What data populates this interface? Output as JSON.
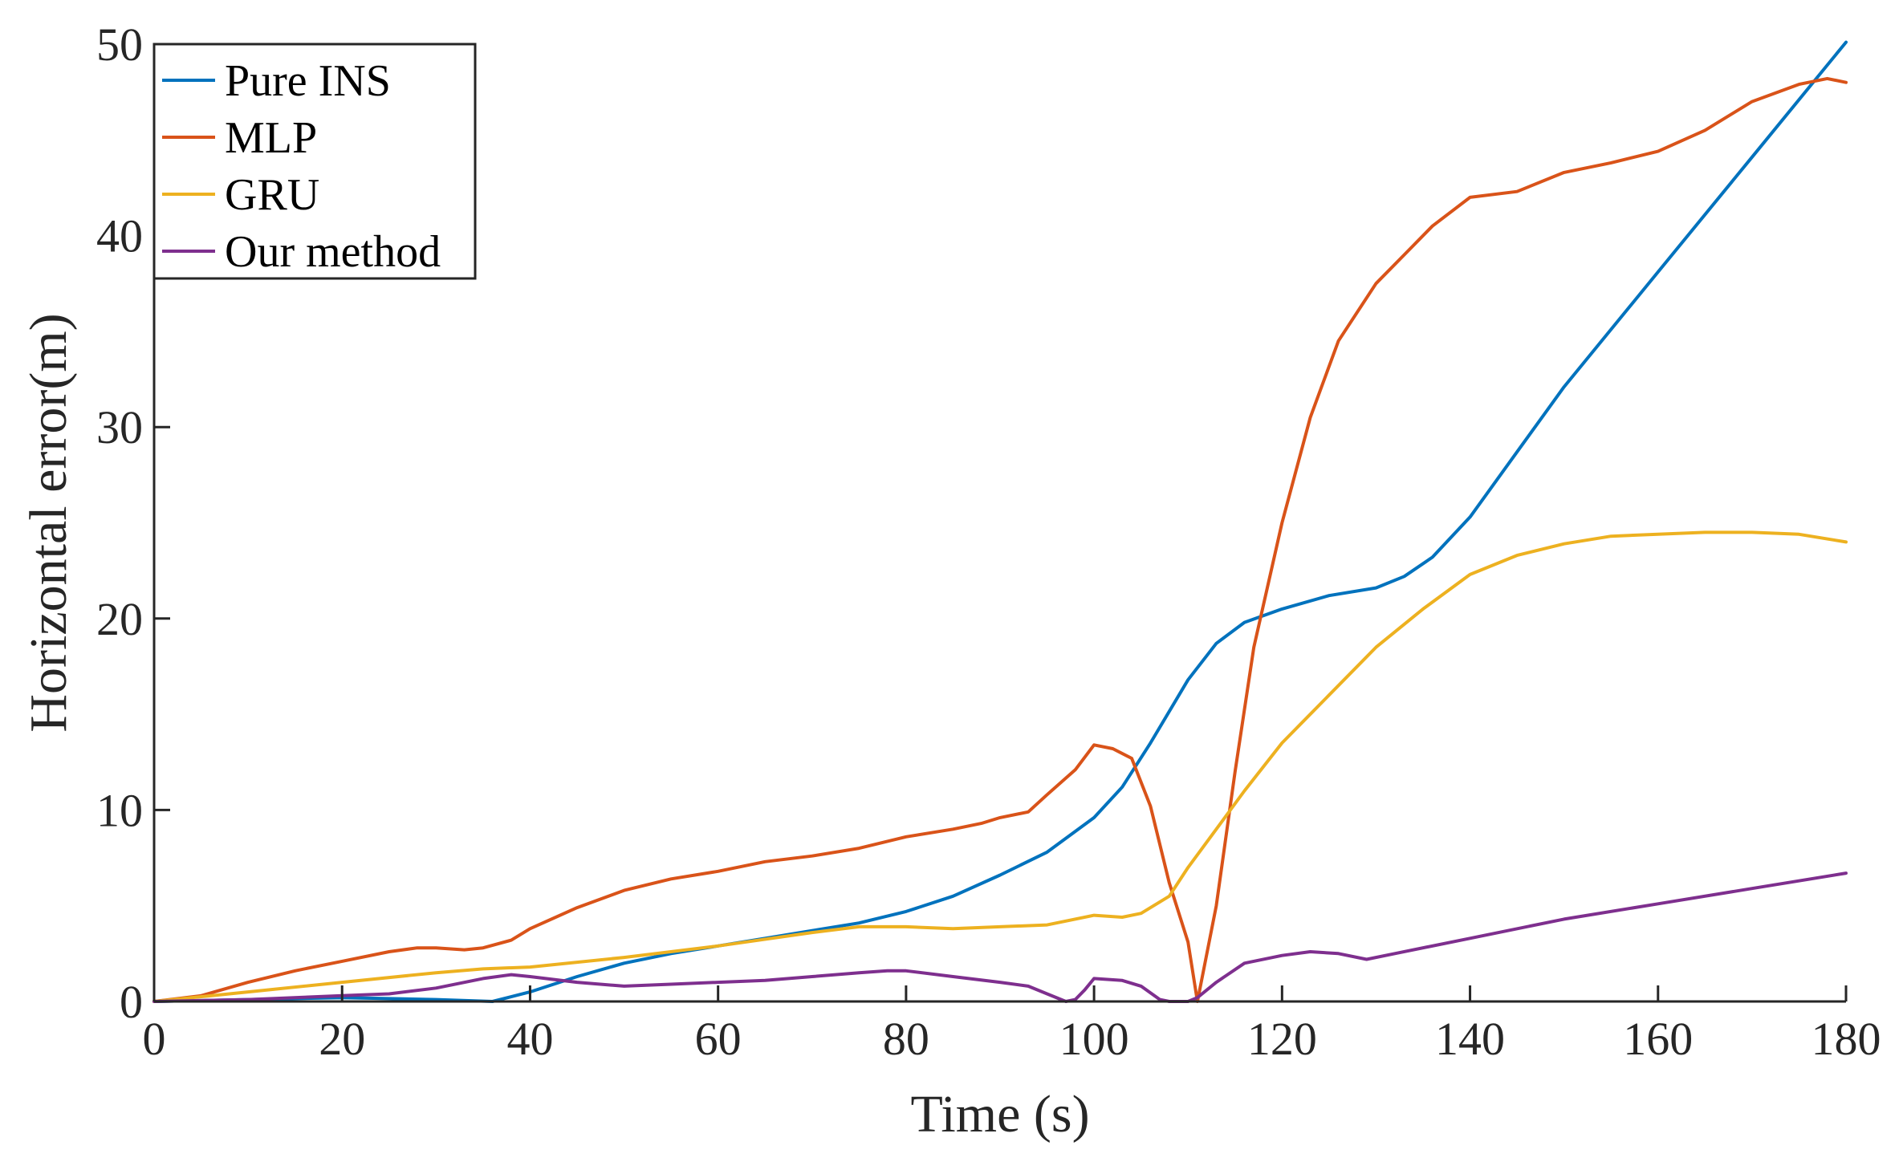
{
  "chart_data": {
    "type": "line",
    "title": "",
    "xlabel": "Time (s)",
    "ylabel": "Horizontal error(m)",
    "xlim": [
      0,
      180
    ],
    "ylim": [
      0,
      50
    ],
    "xticks": [
      0,
      20,
      40,
      60,
      80,
      100,
      120,
      140,
      160,
      180
    ],
    "yticks": [
      0,
      10,
      20,
      30,
      40,
      50
    ],
    "grid": false,
    "legend_position": "top-left",
    "series": [
      {
        "name": "Pure INS",
        "color": "#0072BD",
        "x": [
          0,
          10,
          20,
          30,
          36,
          40,
          45,
          50,
          55,
          60,
          65,
          70,
          75,
          80,
          85,
          90,
          95,
          100,
          103,
          106,
          110,
          113,
          116,
          120,
          125,
          130,
          133,
          136,
          140,
          145,
          150,
          160,
          170,
          180
        ],
        "y": [
          0,
          0.1,
          0.2,
          0.1,
          0,
          0.5,
          1.3,
          2.0,
          2.5,
          2.9,
          3.3,
          3.7,
          4.1,
          4.7,
          5.5,
          6.6,
          7.8,
          9.6,
          11.2,
          13.5,
          16.8,
          18.7,
          19.8,
          20.5,
          21.2,
          21.6,
          22.2,
          23.2,
          25.3,
          28.7,
          32.1,
          38.1,
          44.1,
          50.1
        ]
      },
      {
        "name": "MLP",
        "color": "#D95319",
        "x": [
          0,
          5,
          10,
          15,
          20,
          25,
          28,
          30,
          33,
          35,
          38,
          40,
          45,
          50,
          55,
          60,
          65,
          70,
          75,
          80,
          85,
          88,
          90,
          93,
          95,
          98,
          100,
          102,
          104,
          106,
          108,
          110,
          111,
          113,
          115,
          117,
          120,
          123,
          126,
          130,
          133,
          136,
          140,
          145,
          150,
          155,
          160,
          165,
          170,
          175,
          178,
          180
        ],
        "y": [
          0,
          0.3,
          1.0,
          1.6,
          2.1,
          2.6,
          2.8,
          2.8,
          2.7,
          2.8,
          3.2,
          3.8,
          4.9,
          5.8,
          6.4,
          6.8,
          7.3,
          7.6,
          8.0,
          8.6,
          9.0,
          9.3,
          9.6,
          9.9,
          10.8,
          12.1,
          13.4,
          13.2,
          12.7,
          10.2,
          6.2,
          3.1,
          0,
          5.0,
          12.0,
          18.5,
          25.0,
          30.5,
          34.5,
          37.5,
          39.0,
          40.5,
          42.0,
          42.3,
          43.3,
          43.8,
          44.4,
          45.5,
          47.0,
          47.9,
          48.2,
          48.0
        ]
      },
      {
        "name": "GRU",
        "color": "#EDB120",
        "x": [
          0,
          10,
          20,
          30,
          35,
          40,
          50,
          60,
          70,
          75,
          80,
          85,
          90,
          95,
          100,
          103,
          105,
          108,
          110,
          113,
          116,
          120,
          125,
          130,
          135,
          140,
          145,
          150,
          155,
          160,
          165,
          170,
          175,
          180
        ],
        "y": [
          0,
          0.5,
          1.0,
          1.5,
          1.7,
          1.8,
          2.3,
          2.9,
          3.6,
          3.9,
          3.9,
          3.8,
          3.9,
          4.0,
          4.5,
          4.4,
          4.6,
          5.5,
          7.0,
          9.0,
          11.0,
          13.5,
          16.0,
          18.5,
          20.5,
          22.3,
          23.3,
          23.9,
          24.3,
          24.4,
          24.5,
          24.5,
          24.4,
          24.0
        ]
      },
      {
        "name": "Our method",
        "color": "#7E2F8E",
        "x": [
          0,
          10,
          20,
          25,
          30,
          35,
          38,
          40,
          45,
          50,
          55,
          60,
          65,
          70,
          75,
          78,
          80,
          85,
          90,
          93,
          95,
          97,
          98,
          99,
          100,
          103,
          105,
          107,
          108,
          110,
          111,
          113,
          116,
          120,
          123,
          126,
          129,
          132,
          140,
          150,
          160,
          170,
          180
        ],
        "y": [
          0,
          0.1,
          0.3,
          0.4,
          0.7,
          1.2,
          1.4,
          1.3,
          1.0,
          0.8,
          0.9,
          1.0,
          1.1,
          1.3,
          1.5,
          1.6,
          1.6,
          1.3,
          1.0,
          0.8,
          0.4,
          0,
          0.1,
          0.6,
          1.2,
          1.1,
          0.8,
          0.1,
          0,
          0,
          0.2,
          1.0,
          2.0,
          2.4,
          2.6,
          2.5,
          2.2,
          2.5,
          3.3,
          4.3,
          5.1,
          5.9,
          6.7
        ]
      }
    ]
  }
}
